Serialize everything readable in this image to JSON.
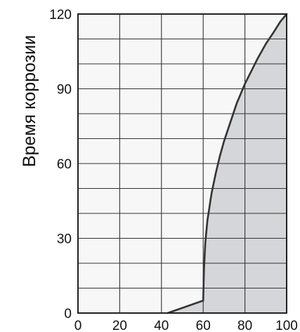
{
  "chart_data": {
    "type": "area",
    "title": "",
    "xlabel": "",
    "ylabel": "Время коррозии",
    "xlim": [
      0,
      100
    ],
    "ylim": [
      0,
      120
    ],
    "x_ticks": [
      0,
      20,
      40,
      60,
      80,
      100
    ],
    "y_ticks": [
      0,
      30,
      60,
      90,
      120
    ],
    "grid": true,
    "grid_x_step": 20,
    "grid_y_step": 10,
    "colors": {
      "fill": "#d4d6d9",
      "plot_background": "#f7f7f7",
      "grid": "#333333",
      "line": "#333333"
    },
    "series": [
      {
        "x": [
          43,
          60,
          60.4,
          61,
          62,
          64,
          66,
          68,
          70,
          72,
          74,
          76,
          78,
          80,
          83,
          86,
          90,
          94,
          97,
          100
        ],
        "y": [
          0,
          5,
          18,
          28,
          37,
          48,
          56,
          63,
          69,
          74,
          79,
          84,
          88,
          92,
          97,
          102,
          108,
          113,
          117,
          120
        ]
      }
    ]
  }
}
